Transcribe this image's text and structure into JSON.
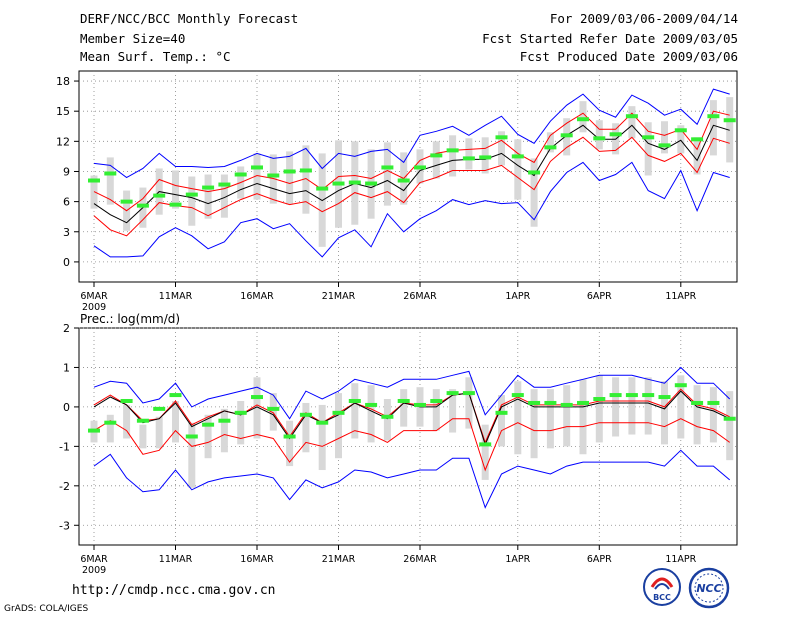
{
  "header": {
    "title": "DERF/NCC/BCC Monthly Forecast",
    "member_size": "Member Size=40",
    "variable": "Mean Surf. Temp.: °C",
    "period": "For 2009/03/06-2009/04/14",
    "started": "Fcst Started Refer Date 2009/03/05",
    "produced": "Fcst Produced Date 2009/03/06"
  },
  "footer": {
    "url": "http://cmdp.ncc.cma.gov.cn",
    "credit": "GrADS: COLA/IGES"
  },
  "logos": {
    "bcc": "BCC",
    "ncc": "NCC"
  },
  "colors": {
    "mean": "#000000",
    "sd": "#ff0000",
    "range": "#0000ff",
    "median": "#33ee33",
    "box": "#d8d8d8"
  },
  "chart_data": [
    {
      "type": "line",
      "title": "Mean Surf. Temp.: °C",
      "x_tick_labels": [
        "6MAR",
        "11MAR",
        "16MAR",
        "21MAR",
        "26MAR",
        "1APR",
        "6APR",
        "11APR"
      ],
      "x_tick_index": [
        0,
        5,
        10,
        15,
        20,
        26,
        31,
        36
      ],
      "x_year_label": "2009",
      "ylim": [
        -2,
        19
      ],
      "yticks": [
        0,
        3,
        6,
        9,
        12,
        15,
        18
      ],
      "series": [
        {
          "name": "mean",
          "values": [
            5.8,
            4.7,
            3.9,
            5.4,
            7,
            6.7,
            6.4,
            5.8,
            6.4,
            7.2,
            7.8,
            7.3,
            6.8,
            7.1,
            6.1,
            7.1,
            7.8,
            7.4,
            8.1,
            7.1,
            9.1,
            9.6,
            10.1,
            10.2,
            10.2,
            10.8,
            9.6,
            8.6,
            11.3,
            12.6,
            13.6,
            12.2,
            12.2,
            13.6,
            11.8,
            11.2,
            12.1,
            10.1,
            13.6,
            13.1
          ]
        },
        {
          "name": "mean_plus_sd",
          "values": [
            7,
            6.2,
            5.1,
            6.3,
            8.2,
            7.6,
            7.3,
            7,
            7.3,
            7.9,
            8.6,
            8.3,
            7.8,
            8.3,
            7.2,
            8.5,
            8.6,
            8.3,
            9.1,
            8.3,
            10.1,
            10.8,
            11.1,
            11.2,
            11.3,
            12.1,
            10.8,
            9.9,
            12.6,
            13.8,
            14.8,
            13.2,
            13.2,
            14.8,
            13,
            12.6,
            13.2,
            11.2,
            15,
            14.6
          ]
        },
        {
          "name": "mean_minus_sd",
          "values": [
            4.6,
            3.2,
            2.6,
            4.2,
            5.9,
            5.6,
            5.4,
            4.6,
            5.4,
            6.2,
            6.8,
            6.2,
            5.7,
            6,
            5,
            5.8,
            6.9,
            6.4,
            7,
            5.9,
            7.9,
            8.4,
            9.1,
            9.1,
            9.1,
            9.6,
            8.4,
            7.2,
            10,
            11.4,
            12.4,
            11,
            11.1,
            12.4,
            10.6,
            10,
            10.8,
            8.9,
            12.3,
            11.8
          ]
        },
        {
          "name": "max",
          "values": [
            9.8,
            9.6,
            8.4,
            9.3,
            10.8,
            9.5,
            9.5,
            9.4,
            9.5,
            10.1,
            10.8,
            10.3,
            10.5,
            11.3,
            9.3,
            10.8,
            10.5,
            11,
            11.2,
            9.9,
            12.6,
            13,
            13.5,
            12.6,
            13.6,
            14.5,
            12.7,
            11.8,
            14,
            15.6,
            16.7,
            15.1,
            14.4,
            16.6,
            15.8,
            14.6,
            15.2,
            13.7,
            17.2,
            16.7
          ]
        },
        {
          "name": "min",
          "values": [
            1.6,
            0.5,
            0.5,
            0.6,
            2.5,
            3.4,
            2.6,
            1.3,
            2,
            3.9,
            4.3,
            3.3,
            3.8,
            2.1,
            0.5,
            2.4,
            3.2,
            1.5,
            4.8,
            3,
            4.3,
            5.1,
            6.2,
            5.7,
            6.1,
            5.8,
            5.9,
            4.2,
            7,
            8.9,
            9.9,
            8.1,
            8.7,
            9.9,
            7.1,
            6.3,
            9.1,
            5.1,
            8.9,
            8.4
          ]
        },
        {
          "name": "median",
          "values": [
            8.1,
            8.8,
            6,
            5.6,
            6.6,
            5.7,
            6.7,
            7.4,
            7.7,
            8.7,
            9.4,
            8.6,
            9,
            9.1,
            7.3,
            7.8,
            7.9,
            7.8,
            9.4,
            8.1,
            9.4,
            10.6,
            11.1,
            10.3,
            10.4,
            12.4,
            10.5,
            8.9,
            11.4,
            12.6,
            14.2,
            12.3,
            12.7,
            14.5,
            12.4,
            11.6,
            13.1,
            12.2,
            14.5,
            14.1
          ]
        },
        {
          "name": "box_top",
          "values": [
            8.6,
            10.4,
            7.1,
            7.4,
            9.3,
            9.1,
            8.5,
            8.7,
            8.7,
            9.5,
            10.8,
            10.7,
            11,
            11.6,
            10.8,
            12.1,
            12,
            11.2,
            11.9,
            10.9,
            11.2,
            12,
            12.6,
            12.3,
            12.4,
            13,
            12.2,
            10.3,
            12.9,
            14.3,
            16,
            14.1,
            13.8,
            15.5,
            13.9,
            14,
            13.6,
            12.4,
            16.1,
            16.4
          ]
        },
        {
          "name": "box_bottom",
          "values": [
            5.3,
            5.7,
            3.1,
            3.4,
            4.7,
            5.3,
            3.6,
            4.3,
            4.4,
            6.3,
            6.2,
            5.8,
            5.7,
            4.8,
            1.5,
            3.4,
            3.7,
            4.3,
            5.6,
            5.7,
            7.8,
            8.3,
            8.5,
            9.2,
            8.8,
            9.6,
            6.2,
            3.5,
            10.9,
            10.6,
            12.9,
            11.2,
            10.7,
            12.3,
            8.6,
            10.8,
            10.8,
            8.7,
            10.6,
            9.9
          ]
        }
      ]
    },
    {
      "type": "line",
      "title": "Prec.: log(mm/d)",
      "x_tick_labels": [
        "6MAR",
        "11MAR",
        "16MAR",
        "21MAR",
        "26MAR",
        "1APR",
        "6APR",
        "11APR"
      ],
      "x_tick_index": [
        0,
        5,
        10,
        15,
        20,
        26,
        31,
        36
      ],
      "x_year_label": "2009",
      "ylim": [
        -3.5,
        2
      ],
      "yticks": [
        -3,
        -2,
        -1,
        0,
        1,
        2
      ],
      "series": [
        {
          "name": "mean",
          "values": [
            0,
            0.25,
            0.05,
            -0.4,
            -0.3,
            0.1,
            -0.5,
            -0.3,
            -0.1,
            -0.2,
            0,
            -0.2,
            -0.8,
            -0.2,
            -0.4,
            -0.2,
            0.1,
            -0.1,
            -0.3,
            0.1,
            0,
            0,
            0.3,
            0.35,
            -0.95,
            0,
            0.2,
            0,
            0,
            0,
            0,
            0.1,
            0.1,
            0.1,
            0.1,
            -0.05,
            0.4,
            0,
            -0.1,
            -0.3
          ]
        },
        {
          "name": "mean_plus_sd",
          "values": [
            0.05,
            0.3,
            0.05,
            -0.35,
            -0.3,
            0.15,
            -0.45,
            -0.25,
            -0.1,
            -0.2,
            0.05,
            -0.15,
            -0.75,
            -0.15,
            -0.4,
            -0.15,
            0.1,
            -0.05,
            -0.25,
            0.1,
            0.05,
            0.05,
            0.3,
            0.35,
            -0.9,
            0.05,
            0.25,
            0.05,
            0.05,
            0.05,
            0.05,
            0.15,
            0.15,
            0.15,
            0.15,
            0,
            0.45,
            0.05,
            -0.05,
            -0.25
          ]
        },
        {
          "name": "mean_minus_sd",
          "values": [
            -0.6,
            -0.35,
            -0.6,
            -1.2,
            -1.1,
            -0.6,
            -1,
            -0.9,
            -0.7,
            -0.8,
            -0.7,
            -0.8,
            -1.4,
            -0.9,
            -1,
            -0.8,
            -0.6,
            -0.7,
            -0.9,
            -0.6,
            -0.6,
            -0.6,
            -0.3,
            -0.3,
            -1.6,
            -0.6,
            -0.4,
            -0.6,
            -0.6,
            -0.5,
            -0.5,
            -0.4,
            -0.4,
            -0.4,
            -0.4,
            -0.5,
            -0.3,
            -0.5,
            -0.6,
            -0.9
          ]
        },
        {
          "name": "max",
          "values": [
            0.5,
            0.65,
            0.6,
            0.1,
            0.2,
            0.6,
            0,
            0.2,
            0.3,
            0.4,
            0.5,
            0.3,
            -0.3,
            0.4,
            0.2,
            0.4,
            0.7,
            0.6,
            0.5,
            0.7,
            0.7,
            0.7,
            0.8,
            0.9,
            -0.2,
            0.3,
            0.8,
            0.5,
            0.5,
            0.6,
            0.7,
            0.8,
            0.8,
            0.8,
            0.7,
            0.6,
            1,
            0.6,
            0.6,
            0.2
          ]
        },
        {
          "name": "min",
          "values": [
            -1.5,
            -1.2,
            -1.8,
            -2.15,
            -2.1,
            -1.6,
            -2.1,
            -1.9,
            -1.8,
            -1.75,
            -1.7,
            -1.8,
            -2.35,
            -1.85,
            -2.05,
            -1.9,
            -1.6,
            -1.65,
            -1.8,
            -1.7,
            -1.6,
            -1.6,
            -1.3,
            -1.3,
            -2.55,
            -1.7,
            -1.5,
            -1.6,
            -1.7,
            -1.5,
            -1.4,
            -1.4,
            -1.4,
            -1.4,
            -1.4,
            -1.5,
            -1.1,
            -1.5,
            -1.5,
            -1.85
          ]
        },
        {
          "name": "median",
          "values": [
            -0.6,
            -0.4,
            0.15,
            -0.35,
            -0.05,
            0.3,
            -0.75,
            -0.45,
            -0.35,
            -0.15,
            0.25,
            -0.05,
            -0.75,
            -0.2,
            -0.4,
            -0.15,
            0.15,
            0.05,
            -0.25,
            0.15,
            0.05,
            0.15,
            0.35,
            0.35,
            -0.95,
            -0.15,
            0.3,
            0.1,
            0.1,
            0.05,
            0.1,
            0.2,
            0.3,
            0.3,
            0.3,
            0.25,
            0.55,
            0.1,
            0.1,
            -0.3
          ]
        },
        {
          "name": "box_top",
          "values": [
            -0.35,
            -0.2,
            0.05,
            -0.45,
            -0.25,
            0.15,
            -0.4,
            -0.2,
            -0.05,
            0.15,
            0.75,
            0.35,
            -0.35,
            0.1,
            0.05,
            0.35,
            0.6,
            0.55,
            0.2,
            0.45,
            0.5,
            0.45,
            0.45,
            0.75,
            -0.45,
            0.3,
            0.65,
            0.45,
            0.45,
            0.55,
            0.7,
            0.8,
            0.75,
            0.75,
            0.75,
            0.65,
            0.8,
            0.55,
            0.5,
            0.4
          ]
        },
        {
          "name": "box_bottom",
          "values": [
            -0.9,
            -0.9,
            -0.8,
            -1.05,
            -1.05,
            -0.9,
            -2.05,
            -1.3,
            -1.15,
            -0.95,
            -0.8,
            -0.6,
            -1.5,
            -1.15,
            -1.6,
            -1.3,
            -0.8,
            -0.9,
            -0.85,
            -0.5,
            -0.5,
            -0.6,
            -0.65,
            -0.55,
            -1.85,
            -1,
            -1.2,
            -1.3,
            -1.05,
            -1,
            -1.2,
            -0.9,
            -0.75,
            -0.7,
            -0.7,
            -0.95,
            -0.8,
            -0.95,
            -0.9,
            -1.35
          ]
        }
      ]
    }
  ]
}
